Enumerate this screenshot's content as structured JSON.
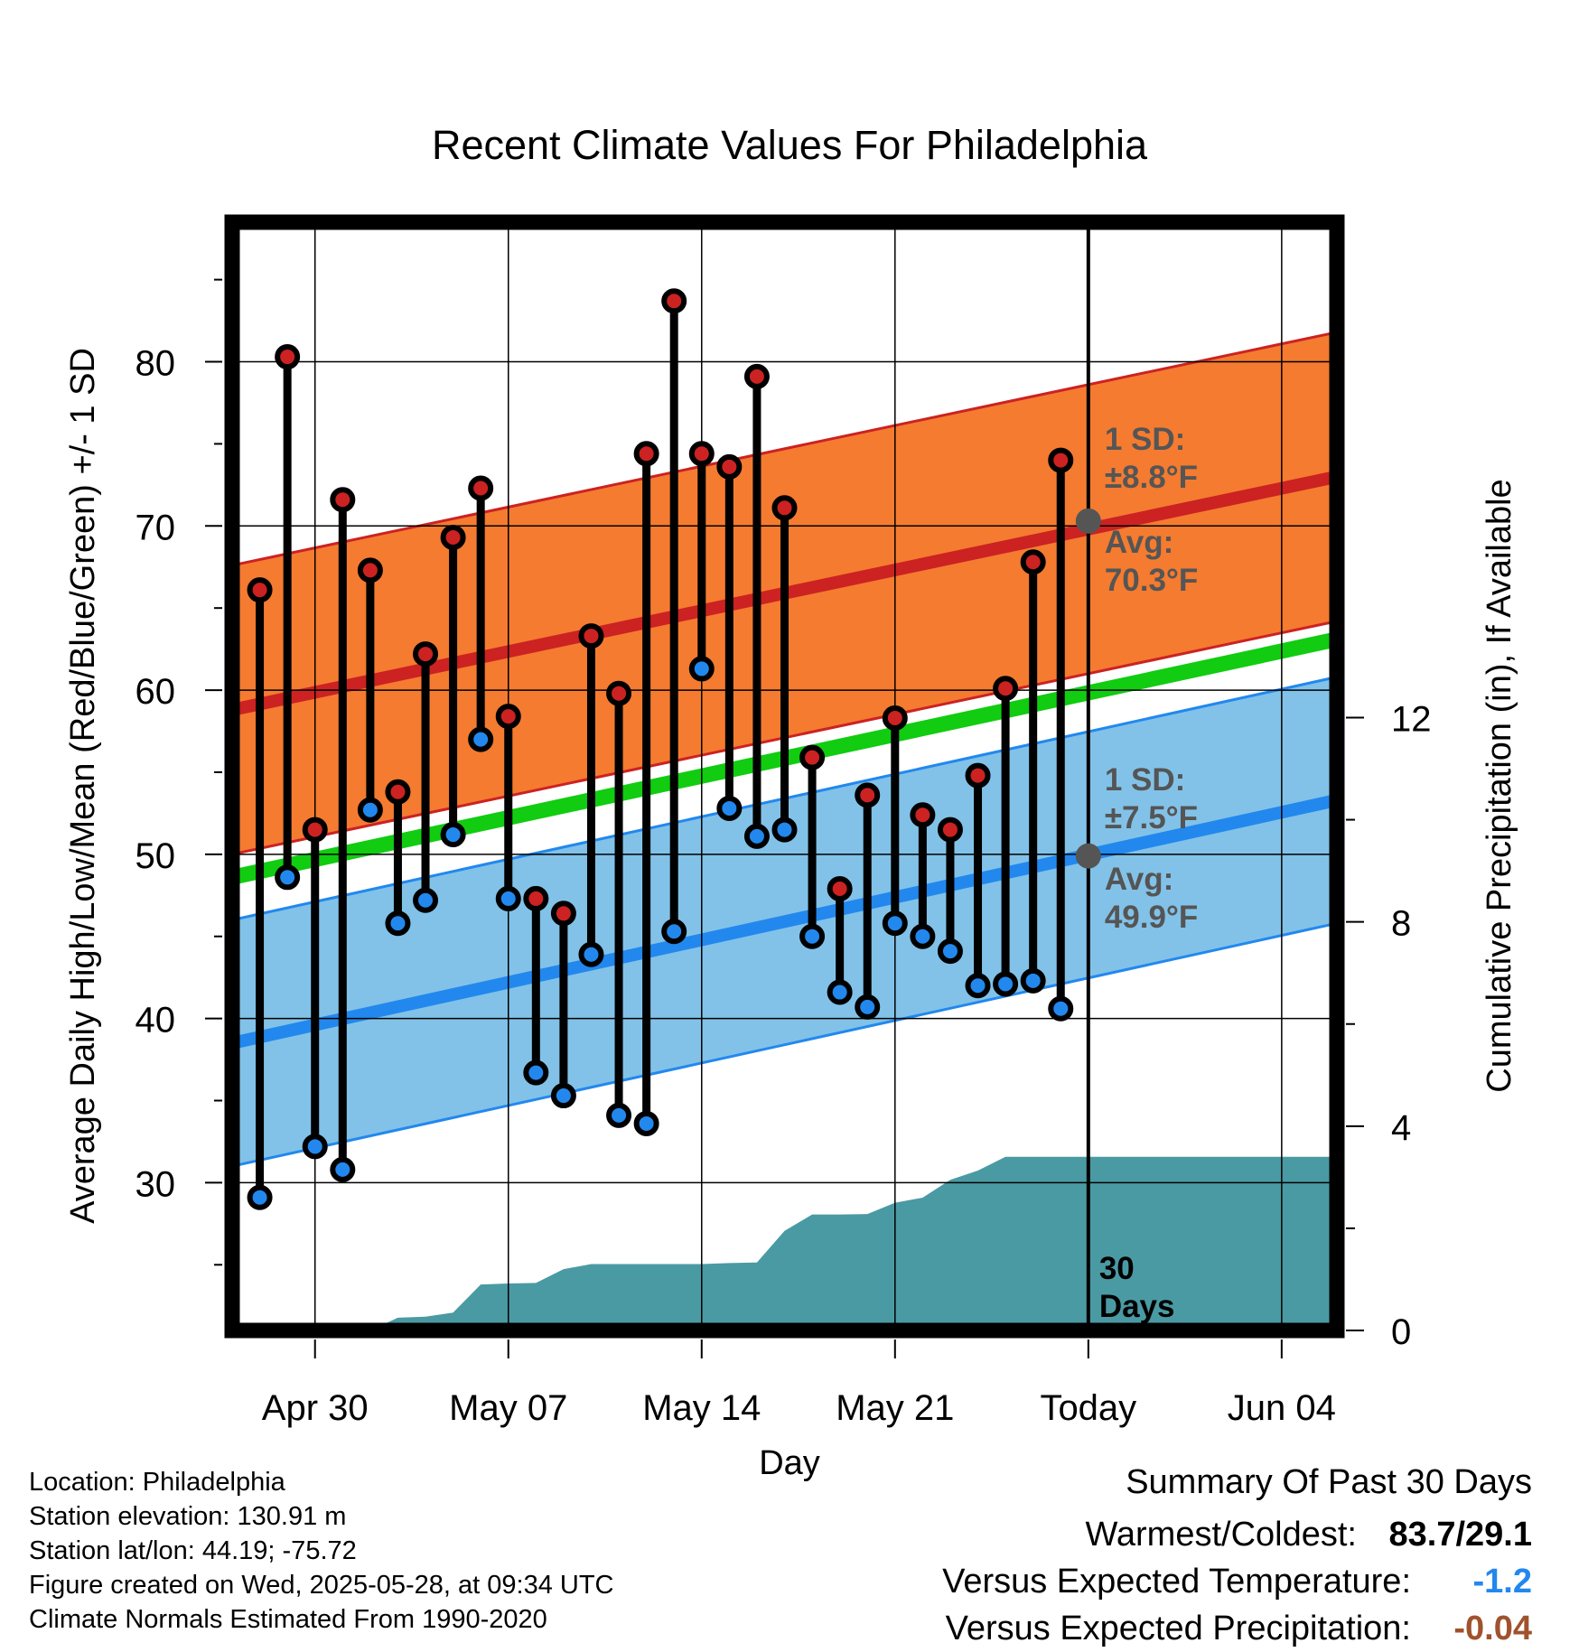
{
  "chart_data": {
    "type": "line",
    "title": "Recent Climate Values For Philadelphia",
    "xlabel": "Day",
    "ylabel": "Average Daily High/Low/Mean (Red/Blue/Green) +/- 1 SD",
    "y2label": "Cumulative Precipitation (in), If Available",
    "x_ticks": [
      "Apr 30",
      "May 07",
      "May 14",
      "May 21",
      "Today",
      "Jun 04"
    ],
    "y_ticks": [
      "30",
      "40",
      "50",
      "60",
      "70",
      "80"
    ],
    "y2_ticks": [
      "0",
      "4",
      "8",
      "12"
    ],
    "ylim": [
      21,
      88.5
    ],
    "y2lim": [
      0,
      21.7
    ],
    "xlim": [
      "Apr 27",
      "Jun 06"
    ],
    "grid": true,
    "today_marker": {
      "label": "30 Days",
      "day": "May 28"
    },
    "normals": {
      "x": [
        "Apr 27",
        "Jun 06"
      ],
      "high_mean": [
        58.8,
        73.0
      ],
      "high_sd": 8.8,
      "low_mean": [
        38.5,
        53.3
      ],
      "low_sd": 7.5,
      "mean_mean": [
        48.6,
        63.1
      ]
    },
    "annotations": {
      "high_sd": "1 SD:",
      "high_sd_value": "±8.8°F",
      "high_avg": "Avg:",
      "high_avg_value": "70.3°F",
      "low_sd": "1 SD:",
      "low_sd_value": "±7.5°F",
      "low_avg": "Avg:",
      "low_avg_value": "49.9°F"
    },
    "today_points": [
      70.3,
      49.9
    ],
    "series": [
      {
        "name": "Daily High",
        "color": "#cc2222",
        "x": [
          "Apr 28",
          "Apr 29",
          "Apr 30",
          "May 01",
          "May 02",
          "May 03",
          "May 04",
          "May 05",
          "May 06",
          "May 07",
          "May 08",
          "May 09",
          "May 10",
          "May 11",
          "May 12",
          "May 13",
          "May 14",
          "May 15",
          "May 16",
          "May 17",
          "May 18",
          "May 19",
          "May 20",
          "May 21",
          "May 22",
          "May 23",
          "May 24",
          "May 25",
          "May 26",
          "May 27"
        ],
        "values": [
          66.1,
          80.3,
          51.5,
          71.6,
          67.3,
          53.8,
          62.2,
          69.3,
          72.3,
          58.4,
          47.3,
          46.4,
          63.3,
          59.8,
          74.4,
          83.7,
          74.4,
          73.6,
          79.1,
          71.1,
          55.9,
          47.9,
          53.6,
          58.3,
          52.4,
          51.5,
          54.8,
          60.1,
          67.8,
          74.0
        ]
      },
      {
        "name": "Daily Low",
        "color": "#2288ee",
        "x": [
          "Apr 28",
          "Apr 29",
          "Apr 30",
          "May 01",
          "May 02",
          "May 03",
          "May 04",
          "May 05",
          "May 06",
          "May 07",
          "May 08",
          "May 09",
          "May 10",
          "May 11",
          "May 12",
          "May 13",
          "May 14",
          "May 15",
          "May 16",
          "May 17",
          "May 18",
          "May 19",
          "May 20",
          "May 21",
          "May 22",
          "May 23",
          "May 24",
          "May 25",
          "May 26",
          "May 27"
        ],
        "values": [
          29.1,
          48.6,
          32.2,
          30.8,
          52.7,
          45.8,
          47.2,
          51.2,
          57.0,
          47.3,
          36.7,
          35.3,
          43.9,
          34.1,
          33.6,
          45.3,
          61.3,
          52.8,
          51.1,
          51.5,
          45.0,
          41.6,
          40.7,
          45.8,
          45.0,
          44.1,
          42.0,
          42.1,
          42.3,
          40.6
        ]
      },
      {
        "name": "Cumulative Precipitation",
        "color": "#4a9aa4",
        "x": [
          "Apr 30",
          "May 01",
          "May 02",
          "May 03",
          "May 04",
          "May 05",
          "May 06",
          "May 07",
          "May 08",
          "May 09",
          "May 10",
          "May 11",
          "May 12",
          "May 13",
          "May 14",
          "May 15",
          "May 16",
          "May 17",
          "May 18",
          "May 19",
          "May 20",
          "May 21",
          "May 22",
          "May 23",
          "May 24",
          "May 25",
          "May 26",
          "May 27",
          "May 28",
          "Jun 06"
        ],
        "values": [
          0,
          0,
          0,
          0.25,
          0.27,
          0.35,
          0.9,
          0.92,
          0.93,
          1.2,
          1.3,
          1.3,
          1.3,
          1.3,
          1.3,
          1.32,
          1.33,
          1.95,
          2.27,
          2.27,
          2.28,
          2.5,
          2.6,
          2.95,
          3.13,
          3.4,
          3.4,
          3.4,
          3.4,
          3.4
        ]
      }
    ]
  },
  "footer": {
    "location": "Location: Philadelphia",
    "elevation": "Station elevation: 130.91 m",
    "latlon": "Station lat/lon: 44.19; -75.72",
    "created": "Figure created on Wed, 2025-05-28, at 09:34 UTC",
    "normals": "Climate Normals Estimated From 1990-2020"
  },
  "summary": {
    "title": "Summary Of Past 30 Days",
    "warmest_label": "Warmest/Coldest:",
    "warmest_value": "83.7/29.1",
    "temp_label": "Versus Expected Temperature:",
    "temp_value": "-1.2",
    "temp_color": "#2288ee",
    "precip_label": "Versus Expected Precipitation:",
    "precip_value": "-0.04",
    "precip_color": "#a0522d"
  },
  "colors": {
    "high_band": "#f47b30",
    "high_line": "#cc2222",
    "low_band": "#82c2e8",
    "low_line": "#2288ee",
    "mean_line": "#11cc11",
    "precip_fill": "#4a9aa4",
    "frame": "#000000",
    "today_dot": "#555555",
    "annotation_text": "#555555"
  }
}
